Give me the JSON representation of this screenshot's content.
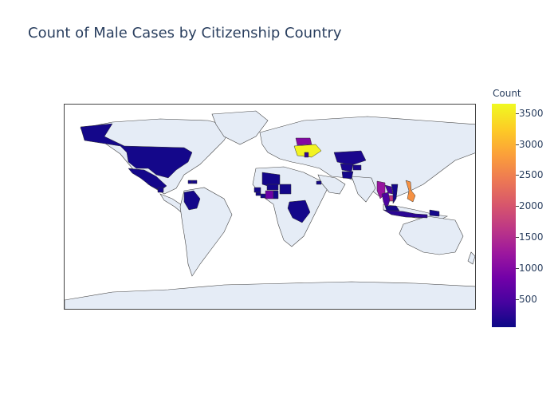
{
  "chart_data": {
    "type": "choropleth",
    "title": "Count of Male Cases by Citizenship Country",
    "projection": "equirectangular",
    "colorbar": {
      "title": "Count",
      "range": [
        50,
        3650
      ],
      "ticks": [
        500,
        1000,
        1500,
        2000,
        2500,
        3000,
        3500
      ],
      "colorscale": [
        "#0d0887",
        "#46039f",
        "#7201a8",
        "#9c179e",
        "#bd3786",
        "#d8576b",
        "#ed7953",
        "#fb9f3a",
        "#fdca26",
        "#f0f921"
      ]
    },
    "countries": [
      {
        "name": "Ukraine",
        "value": 3600
      },
      {
        "name": "Philippines",
        "value": 2700
      },
      {
        "name": "Cambodia",
        "value": 1700
      },
      {
        "name": "Myanmar",
        "value": 1200
      },
      {
        "name": "Belarus",
        "value": 1000
      },
      {
        "name": "Cote d'Ivoire",
        "value": 800
      },
      {
        "name": "Thailand",
        "value": 500
      },
      {
        "name": "Laos",
        "value": 450
      },
      {
        "name": "Kazakhstan",
        "value": 150
      },
      {
        "name": "Uzbekistan",
        "value": 150
      },
      {
        "name": "Kyrgyzstan",
        "value": 150
      },
      {
        "name": "Indonesia",
        "value": 250
      },
      {
        "name": "Moldova",
        "value": 300
      },
      {
        "name": "United States",
        "value": 100
      },
      {
        "name": "Mexico",
        "value": 100
      },
      {
        "name": "Colombia",
        "value": 100
      },
      {
        "name": "DR Congo",
        "value": 100
      },
      {
        "name": "Nigeria",
        "value": 100
      },
      {
        "name": "Mali",
        "value": 100
      },
      {
        "name": "Burkina Faso",
        "value": 100
      },
      {
        "name": "Ghana",
        "value": 100
      },
      {
        "name": "Guinea",
        "value": 100
      },
      {
        "name": "Sierra Leone",
        "value": 100
      },
      {
        "name": "Liberia",
        "value": 100
      },
      {
        "name": "Malaysia",
        "value": 100
      },
      {
        "name": "Vietnam",
        "value": 100
      },
      {
        "name": "Papua New Guinea",
        "value": 100
      },
      {
        "name": "Afghanistan",
        "value": 100
      },
      {
        "name": "Haiti",
        "value": 100
      },
      {
        "name": "Guatemala",
        "value": 100
      },
      {
        "name": "Dominican Republic",
        "value": 100
      },
      {
        "name": "Eritrea",
        "value": 100
      }
    ]
  }
}
